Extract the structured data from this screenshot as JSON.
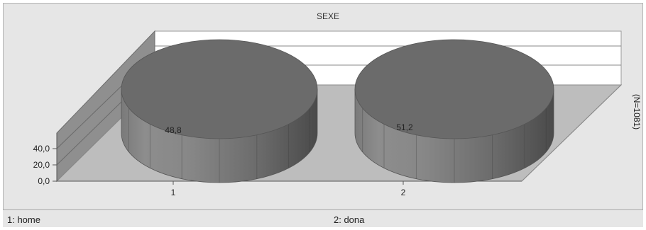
{
  "chart_data": {
    "type": "bar",
    "style": "3d-cylinder",
    "title": "SEXE",
    "categories": [
      "1",
      "2"
    ],
    "values": [
      48.8,
      51.2
    ],
    "value_labels": [
      "48,8",
      "51,2"
    ],
    "y_ticks": [
      "0,0",
      "20,0",
      "40,0"
    ],
    "ylim": [
      0,
      40
    ],
    "side_label": "(N=1081)",
    "grid": true,
    "colors": {
      "top": "#6b6b6b",
      "side_light": "#8a8a8a",
      "side_dark": "#4e4e4e",
      "floor": "#bdbdbd",
      "wall": "#ffffff",
      "side_wall": "#8f8f8f"
    }
  },
  "legend": {
    "item1": "1: home",
    "item2": "2: dona"
  }
}
